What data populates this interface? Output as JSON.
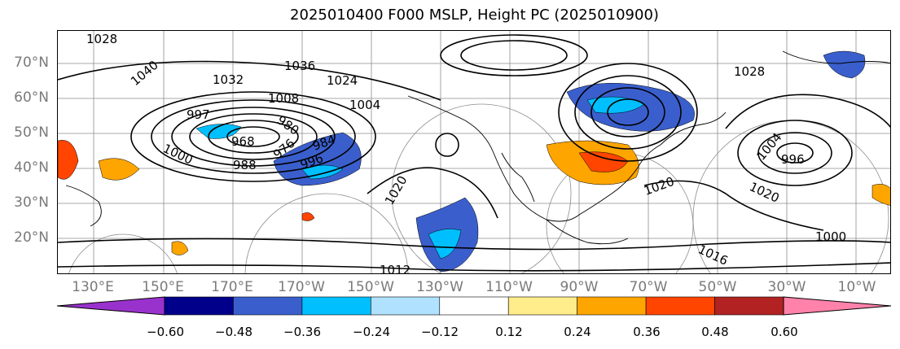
{
  "title": "2025010400 F000 MSLP, Height PC (2025010900)",
  "lat_labels": [
    "70°N",
    "60°N",
    "50°N",
    "40°N",
    "30°N",
    "20°N"
  ],
  "lon_labels": [
    "130°E",
    "150°E",
    "170°E",
    "170°W",
    "150°W",
    "130°W",
    "110°W",
    "90°W",
    "70°W",
    "50°W",
    "30°W",
    "10°W"
  ],
  "contour_labels": [
    "1028",
    "1040",
    "1032",
    "997",
    "1008",
    "1004",
    "968",
    "980",
    "976",
    "984",
    "996",
    "988",
    "1000",
    "1020",
    "1036",
    "1024",
    "1012",
    "1016",
    "1028",
    "1004",
    "996",
    "1000",
    "1020",
    "1020"
  ],
  "colorbar": {
    "ticks": [
      "−0.60",
      "−0.48",
      "−0.36",
      "−0.24",
      "−0.12",
      "0.12",
      "0.24",
      "0.36",
      "0.48",
      "0.60"
    ],
    "colors": [
      "#9932cc",
      "#00008b",
      "#3a5fcd",
      "#00bfff",
      "#b0e2ff",
      "#ffffff",
      "#ffec8b",
      "#ffa500",
      "#ff4500",
      "#b22222",
      "#ff82ab"
    ]
  },
  "colors": {
    "contour": "#000000",
    "grid": "#8c8c8c",
    "coast": "#000000"
  }
}
